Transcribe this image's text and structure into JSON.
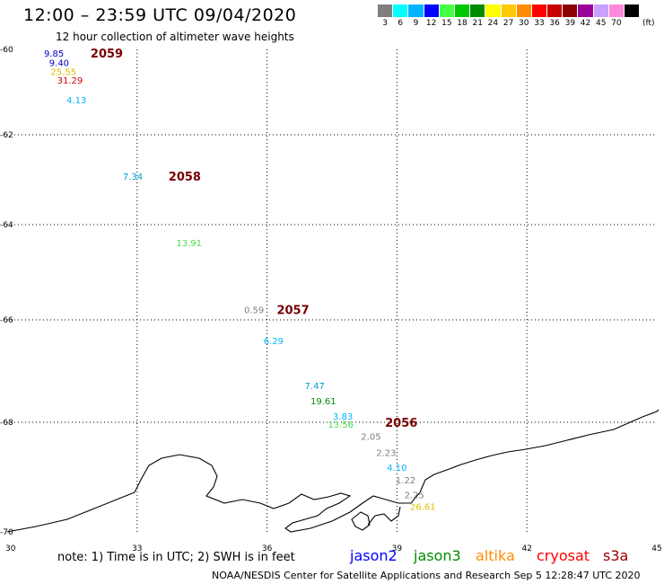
{
  "header": {
    "title": "12:00 – 23:59 UTC 09/04/2020",
    "subtitle": "12 hour collection of altimeter wave heights"
  },
  "legend": {
    "unit": "(ft)",
    "bins": [
      {
        "label": "3",
        "color": "#7f7f7f"
      },
      {
        "label": "6",
        "color": "#00ffff"
      },
      {
        "label": "9",
        "color": "#00b4ff"
      },
      {
        "label": "12",
        "color": "#0000ff"
      },
      {
        "label": "15",
        "color": "#44ff44"
      },
      {
        "label": "18",
        "color": "#00c800"
      },
      {
        "label": "21",
        "color": "#008c00"
      },
      {
        "label": "24",
        "color": "#ffff00"
      },
      {
        "label": "27",
        "color": "#ffc800"
      },
      {
        "label": "30",
        "color": "#ff8c00"
      },
      {
        "label": "33",
        "color": "#ff0000"
      },
      {
        "label": "36",
        "color": "#c80000"
      },
      {
        "label": "39",
        "color": "#8b0000"
      },
      {
        "label": "42",
        "color": "#9b009b"
      },
      {
        "label": "45",
        "color": "#c8a0ff"
      },
      {
        "label": "70",
        "color": "#ff88dd"
      },
      {
        "label": "",
        "color": "#000000"
      }
    ]
  },
  "map": {
    "lon_range": [
      30,
      45
    ],
    "lat_range": [
      -70,
      -60
    ],
    "lon_ticks": [
      "30",
      "33",
      "36",
      "39",
      "42",
      "45"
    ],
    "lat_ticks": [
      "-60",
      "-62",
      "-64",
      "-66",
      "-68",
      "-70"
    ],
    "observations": [
      {
        "text": "9.85",
        "lon": 31.08,
        "lat": -60.08,
        "color": "#0000c8"
      },
      {
        "text": "9.40",
        "lon": 31.2,
        "lat": -60.3,
        "color": "#0000c8"
      },
      {
        "text": "25.55",
        "lon": 31.3,
        "lat": -60.52,
        "color": "#e0c000"
      },
      {
        "text": "31.29",
        "lon": 31.45,
        "lat": -60.72,
        "color": "#d00000"
      },
      {
        "text": "4.13",
        "lon": 31.6,
        "lat": -61.18,
        "color": "#00b4ff"
      },
      {
        "text": "7.34",
        "lon": 32.9,
        "lat": -62.92,
        "color": "#00a0c8"
      },
      {
        "text": "13.91",
        "lon": 34.2,
        "lat": -64.38,
        "color": "#44dd44"
      },
      {
        "text": "0.59",
        "lon": 35.7,
        "lat": -65.78,
        "color": "#7f7f7f"
      },
      {
        "text": "6.29",
        "lon": 36.15,
        "lat": -66.4,
        "color": "#00b4ff"
      },
      {
        "text": "7.47",
        "lon": 37.1,
        "lat": -67.28,
        "color": "#00a0c8"
      },
      {
        "text": "19.61",
        "lon": 37.3,
        "lat": -67.58,
        "color": "#008c00"
      },
      {
        "text": "3.83",
        "lon": 37.75,
        "lat": -67.88,
        "color": "#00b4ff"
      },
      {
        "text": "13.56",
        "lon": 37.7,
        "lat": -68.03,
        "color": "#44dd44"
      },
      {
        "text": "2.05",
        "lon": 38.4,
        "lat": -68.25,
        "color": "#7f7f7f"
      },
      {
        "text": "2.23",
        "lon": 38.75,
        "lat": -68.55,
        "color": "#7f7f7f"
      },
      {
        "text": "4.10",
        "lon": 39.0,
        "lat": -68.82,
        "color": "#00b4ff"
      },
      {
        "text": "1.22",
        "lon": 39.2,
        "lat": -69.05,
        "color": "#7f7f7f"
      },
      {
        "text": "2.25",
        "lon": 39.4,
        "lat": -69.32,
        "color": "#7f7f7f"
      },
      {
        "text": "26.61",
        "lon": 39.6,
        "lat": -69.53,
        "color": "#e0c000"
      }
    ],
    "passes": [
      {
        "text": "2059",
        "lon": 32.3,
        "lat": -60.08
      },
      {
        "text": "2058",
        "lon": 34.1,
        "lat": -62.92
      },
      {
        "text": "2057",
        "lon": 36.6,
        "lat": -65.78
      },
      {
        "text": "2056",
        "lon": 39.1,
        "lat": -68.0
      }
    ],
    "pass_color": "#780000"
  },
  "footer": {
    "note": "note:  1) Time is in UTC;  2) SWH is in feet",
    "satellites": [
      {
        "name": "jason2",
        "color": "#0000ff"
      },
      {
        "name": "jason3",
        "color": "#008c00"
      },
      {
        "name": "altika",
        "color": "#ff8c00"
      },
      {
        "name": "cryosat",
        "color": "#ff0000"
      },
      {
        "name": "s3a",
        "color": "#a00000"
      }
    ],
    "credit": "NOAA/NESDIS Center for Satellite Applications and Research    Sep  5 12:28:47 UTC 2020"
  }
}
